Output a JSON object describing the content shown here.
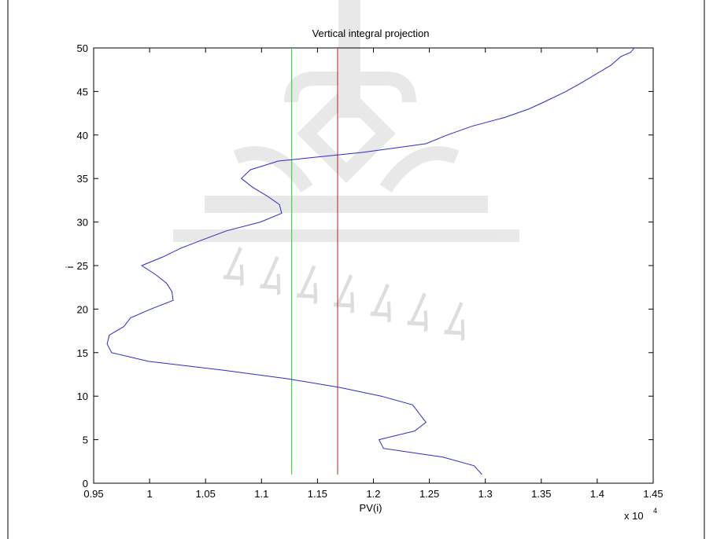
{
  "chart_data": {
    "type": "line",
    "title": "Vertical integral projection",
    "xlabel": "PV(i)",
    "ylabel": "i",
    "x_multiplier_label": "x 10",
    "x_multiplier_exponent": "4",
    "xlim": [
      0.95,
      1.45
    ],
    "ylim": [
      0,
      50
    ],
    "x_ticks": [
      0.95,
      1.0,
      1.05,
      1.1,
      1.15,
      1.2,
      1.25,
      1.3,
      1.35,
      1.4,
      1.45
    ],
    "x_tick_labels": [
      "0.95",
      "1",
      "1.05",
      "1.1",
      "1.15",
      "1.2",
      "1.25",
      "1.3",
      "1.35",
      "1.4",
      "1.45"
    ],
    "y_ticks": [
      0,
      5,
      10,
      15,
      20,
      25,
      30,
      35,
      40,
      45,
      50
    ],
    "y_tick_labels": [
      "0",
      "5",
      "10",
      "15",
      "20",
      "25",
      "30",
      "35",
      "40",
      "45",
      "50"
    ],
    "grid": false,
    "series": [
      {
        "color": "#2b2bc8",
        "x": [
          1.297,
          1.29,
          1.262,
          1.209,
          1.205,
          1.237,
          1.247,
          1.241,
          1.235,
          1.207,
          1.17,
          1.123,
          1.065,
          0.999,
          0.966,
          0.962,
          0.964,
          0.977,
          0.983,
          1.001,
          1.021,
          1.02,
          1.015,
          1.005,
          0.993,
          1.012,
          1.028,
          1.048,
          1.069,
          1.099,
          1.118,
          1.116,
          1.105,
          1.092,
          1.082,
          1.09,
          1.115,
          1.19,
          1.247,
          1.266,
          1.288,
          1.317,
          1.339,
          1.356,
          1.372,
          1.386,
          1.399,
          1.412,
          1.421,
          1.43,
          1.433
        ],
        "y": [
          1,
          2,
          3,
          4,
          5,
          6,
          7,
          8,
          9,
          10,
          11,
          12,
          13,
          14,
          15,
          16,
          17,
          18,
          19,
          20,
          21,
          22,
          23,
          24,
          25,
          26,
          27,
          28,
          29,
          30,
          31,
          32,
          33,
          34,
          35,
          36,
          37,
          38,
          39,
          40,
          41,
          42,
          43,
          44,
          45,
          46,
          47,
          48,
          49,
          49.5,
          50
        ]
      }
    ],
    "vertical_lines": [
      {
        "color": "#22cc22",
        "x": 1.127,
        "y_range": [
          1,
          50
        ]
      },
      {
        "color": "#aa2222",
        "x": 1.168,
        "y_range": [
          1,
          50
        ]
      }
    ]
  }
}
